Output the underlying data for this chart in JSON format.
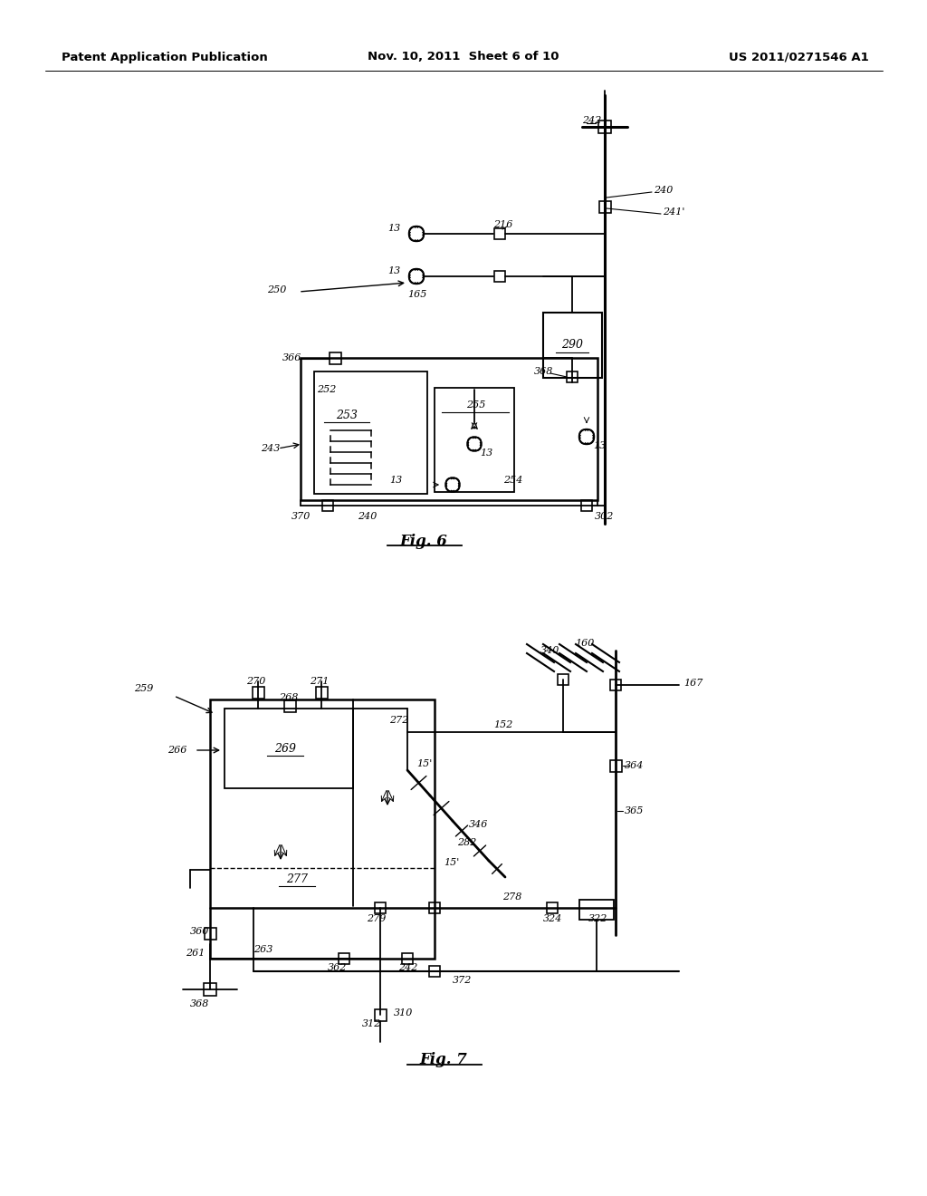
{
  "bg_color": "#ffffff",
  "line_color": "#000000",
  "header_left": "Patent Application Publication",
  "header_center": "Nov. 10, 2011  Sheet 6 of 10",
  "header_right": "US 2011/0271546 A1"
}
